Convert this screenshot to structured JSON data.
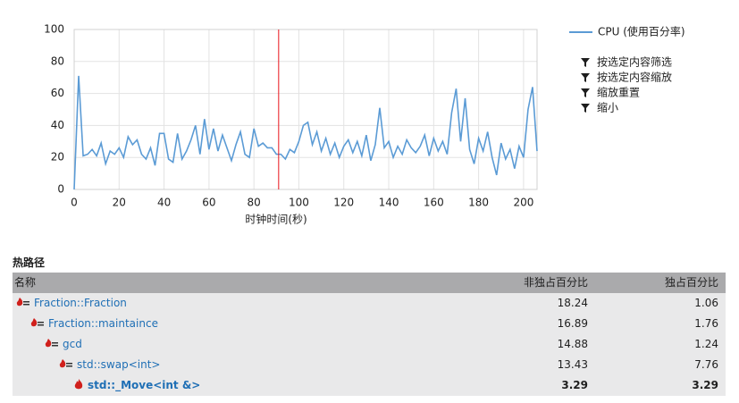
{
  "chart_data": {
    "type": "line",
    "x_label": "时钟时间(秒)",
    "x": [
      0,
      2,
      4,
      6,
      8,
      10,
      12,
      14,
      16,
      18,
      20,
      22,
      24,
      26,
      28,
      30,
      32,
      34,
      36,
      38,
      40,
      42,
      44,
      46,
      48,
      50,
      52,
      54,
      56,
      58,
      60,
      62,
      64,
      66,
      68,
      70,
      72,
      74,
      76,
      78,
      80,
      82,
      84,
      86,
      88,
      90,
      92,
      94,
      96,
      98,
      100,
      102,
      104,
      106,
      108,
      110,
      112,
      114,
      116,
      118,
      120,
      122,
      124,
      126,
      128,
      130,
      132,
      134,
      136,
      138,
      140,
      142,
      144,
      146,
      148,
      150,
      152,
      154,
      156,
      158,
      160,
      162,
      164,
      166,
      168,
      170,
      172,
      174,
      176,
      178,
      180,
      182,
      184,
      186,
      188,
      190,
      192,
      194,
      196,
      198,
      200,
      202,
      204,
      206
    ],
    "series": [
      {
        "name": "CPU (使用百分率)",
        "color": "#5b9bd5",
        "values": [
          0,
          71,
          21,
          22,
          25,
          21,
          29,
          16,
          24,
          22,
          26,
          20,
          33,
          28,
          31,
          22,
          19,
          26,
          15,
          35,
          35,
          19,
          17,
          35,
          19,
          24,
          31,
          40,
          22,
          44,
          25,
          38,
          24,
          34,
          26,
          18,
          28,
          36,
          22,
          20,
          38,
          27,
          29,
          26,
          26,
          22,
          22,
          19,
          25,
          23,
          30,
          40,
          42,
          28,
          36,
          24,
          32,
          22,
          29,
          20,
          27,
          31,
          23,
          30,
          21,
          34,
          18,
          28,
          51,
          26,
          30,
          20,
          27,
          22,
          31,
          26,
          23,
          27,
          34,
          21,
          32,
          24,
          30,
          22,
          48,
          63,
          30,
          57,
          25,
          16,
          32,
          24,
          36,
          20,
          9,
          29,
          19,
          25,
          13,
          27,
          20,
          50,
          64,
          24
        ]
      }
    ],
    "xlim": [
      0,
      206
    ],
    "xticks": [
      0,
      20,
      40,
      60,
      80,
      100,
      120,
      140,
      160,
      180,
      200
    ],
    "ylim": [
      0,
      100
    ],
    "yticks": [
      0,
      20,
      40,
      60,
      80,
      100
    ],
    "grid": true,
    "cursor_x": 91,
    "cursor_color": "#e8131b"
  },
  "chart_menu": [
    "按选定内容筛选",
    "按选定内容缩放",
    "缩放重置",
    "缩小"
  ],
  "table": {
    "title": "热路径",
    "headers": [
      "名称",
      "非独占百分比",
      "独占百分比"
    ],
    "rows": [
      {
        "name": "Fraction::Fraction",
        "inclusive": "18.24",
        "exclusive": "1.06"
      },
      {
        "name": "Fraction::maintaince",
        "inclusive": "16.89",
        "exclusive": "1.76"
      },
      {
        "name": "gcd",
        "inclusive": "14.88",
        "exclusive": "1.24"
      },
      {
        "name": "std::swap<int>",
        "inclusive": "13.43",
        "exclusive": "7.76"
      },
      {
        "name": "std::_Move<int &>",
        "inclusive": "3.29",
        "exclusive": "3.29"
      }
    ]
  }
}
